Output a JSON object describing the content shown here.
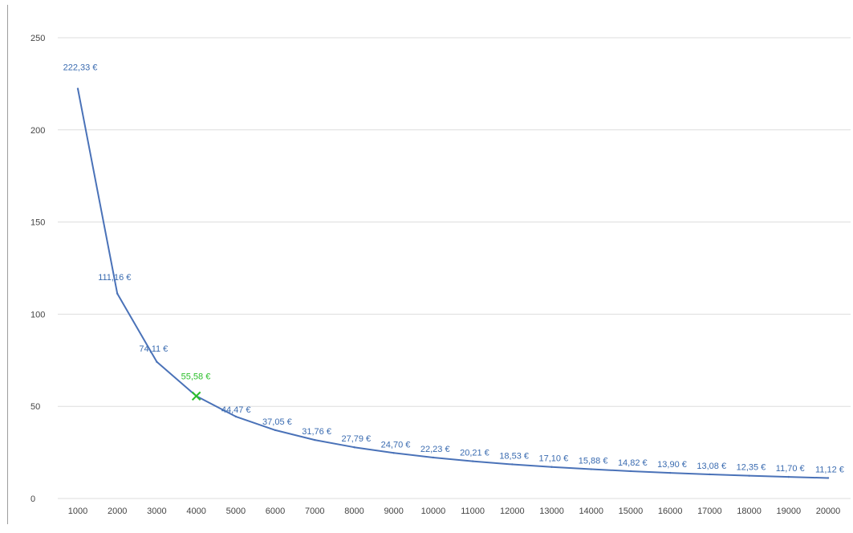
{
  "chart_data": {
    "type": "line",
    "title": "",
    "xlabel": "",
    "ylabel": "",
    "x": [
      1000,
      2000,
      3000,
      4000,
      5000,
      6000,
      7000,
      8000,
      9000,
      10000,
      11000,
      12000,
      13000,
      14000,
      15000,
      16000,
      17000,
      18000,
      19000,
      20000
    ],
    "series": [
      {
        "name": "",
        "values": [
          222.33,
          111.16,
          74.11,
          55.58,
          44.47,
          37.05,
          31.76,
          27.79,
          24.7,
          22.23,
          20.21,
          18.53,
          17.1,
          15.88,
          14.82,
          13.9,
          13.08,
          12.35,
          11.7,
          11.12
        ],
        "data_labels": [
          "222,33 €",
          "111,16 €",
          "74,11 €",
          "55,58 €",
          "44,47 €",
          "37,05 €",
          "31,76 €",
          "27,79 €",
          "24,70 €",
          "22,23 €",
          "20,21 €",
          "18,53 €",
          "17,10 €",
          "15,88 €",
          "14,82 €",
          "13,90 €",
          "13,08 €",
          "12,35 €",
          "11,70 €",
          "11,12 €"
        ]
      }
    ],
    "highlight": {
      "index": 3,
      "marker": "x"
    },
    "x_tick_labels": [
      "1000",
      "2000",
      "3000",
      "4000",
      "5000",
      "6000",
      "7000",
      "8000",
      "9000",
      "10000",
      "11000",
      "12000",
      "13000",
      "14000",
      "15000",
      "16000",
      "17000",
      "18000",
      "19000",
      "20000"
    ],
    "y_tick_values": [
      0,
      50,
      100,
      150,
      200,
      250
    ],
    "y_tick_labels": [
      "0",
      "50",
      "100",
      "150",
      "200",
      "250"
    ],
    "ylim": [
      0,
      250
    ],
    "grid": true,
    "legend": "none",
    "colors": {
      "line": "#4a72b8",
      "label": "#3a6bb0",
      "highlight": "#2bbf2b",
      "grid": "#dddddd",
      "tick_text": "#444444",
      "axis": "#9e9e9e"
    }
  }
}
